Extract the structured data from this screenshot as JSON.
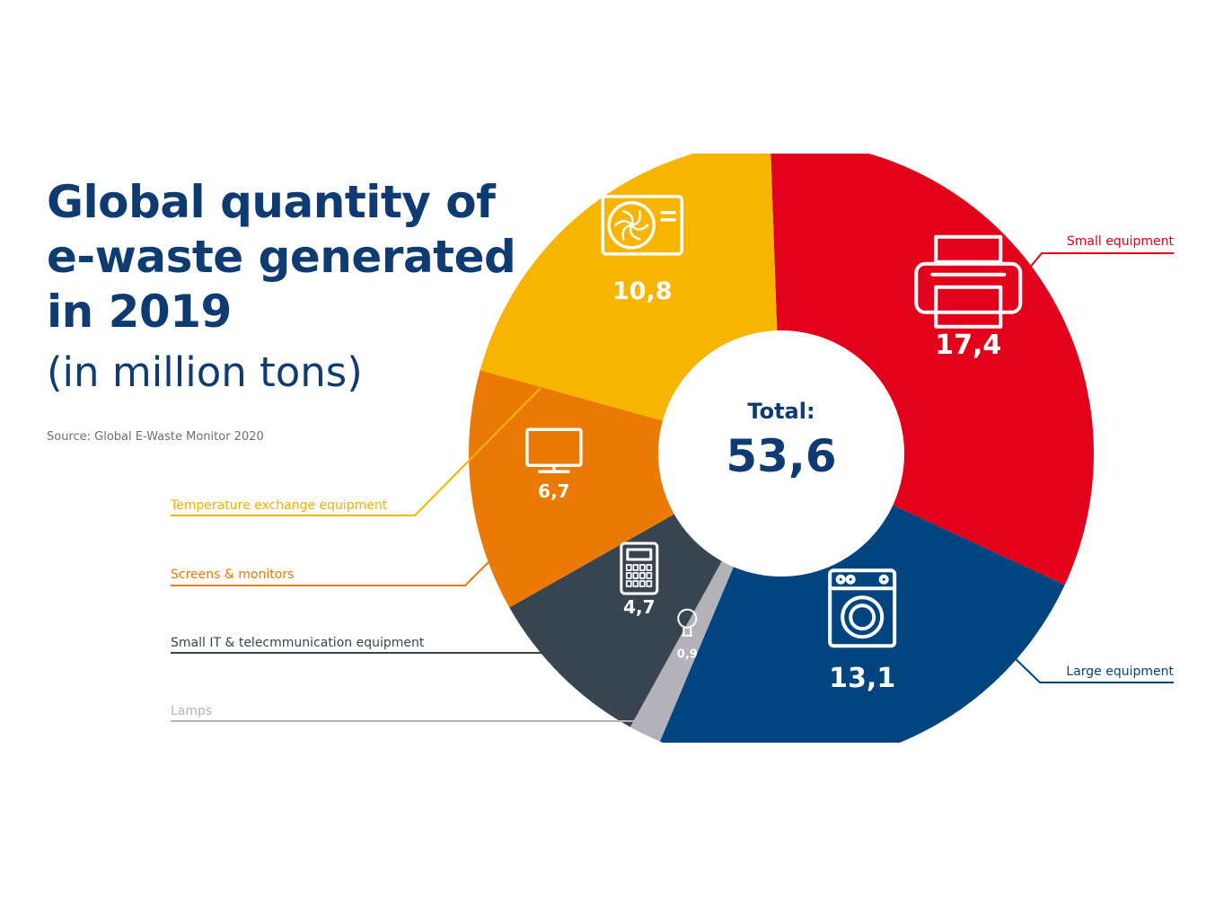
{
  "header": {
    "title_lines": [
      "Global quantity of",
      "e-waste generated",
      "in 2019"
    ],
    "subtitle": "(in million tons)",
    "source": "Source: Global E-Waste Monitor 2020"
  },
  "chart_data": {
    "type": "pie",
    "variant": "donut",
    "title": "Global quantity of e-waste generated in 2019 (in million tons)",
    "unit": "million tons",
    "total_label": "Total:",
    "total_value": 53.6,
    "total_display": "53,6",
    "slices": [
      {
        "name": "Small equipment",
        "value": 17.4,
        "display": "17,4",
        "color": "#e2001a",
        "icon": "printer-icon"
      },
      {
        "name": "Large equipment",
        "value": 13.1,
        "display": "13,1",
        "color": "#004480",
        "icon": "washing-machine-icon"
      },
      {
        "name": "Lamps",
        "value": 0.9,
        "display": "0,9",
        "color": "#b2b2b8",
        "icon": "light-bulb-icon"
      },
      {
        "name": "Small IT & telecmmunication equipment",
        "value": 4.7,
        "display": "4,7",
        "color": "#38444f",
        "icon": "calculator-icon"
      },
      {
        "name": "Screens & monitors",
        "value": 6.7,
        "display": "6,7",
        "color": "#ea7a05",
        "icon": "monitor-icon"
      },
      {
        "name": "Temperature exchange equipment",
        "value": 10.8,
        "display": "10,8",
        "color": "#f7b500",
        "icon": "air-conditioner-icon"
      }
    ]
  }
}
